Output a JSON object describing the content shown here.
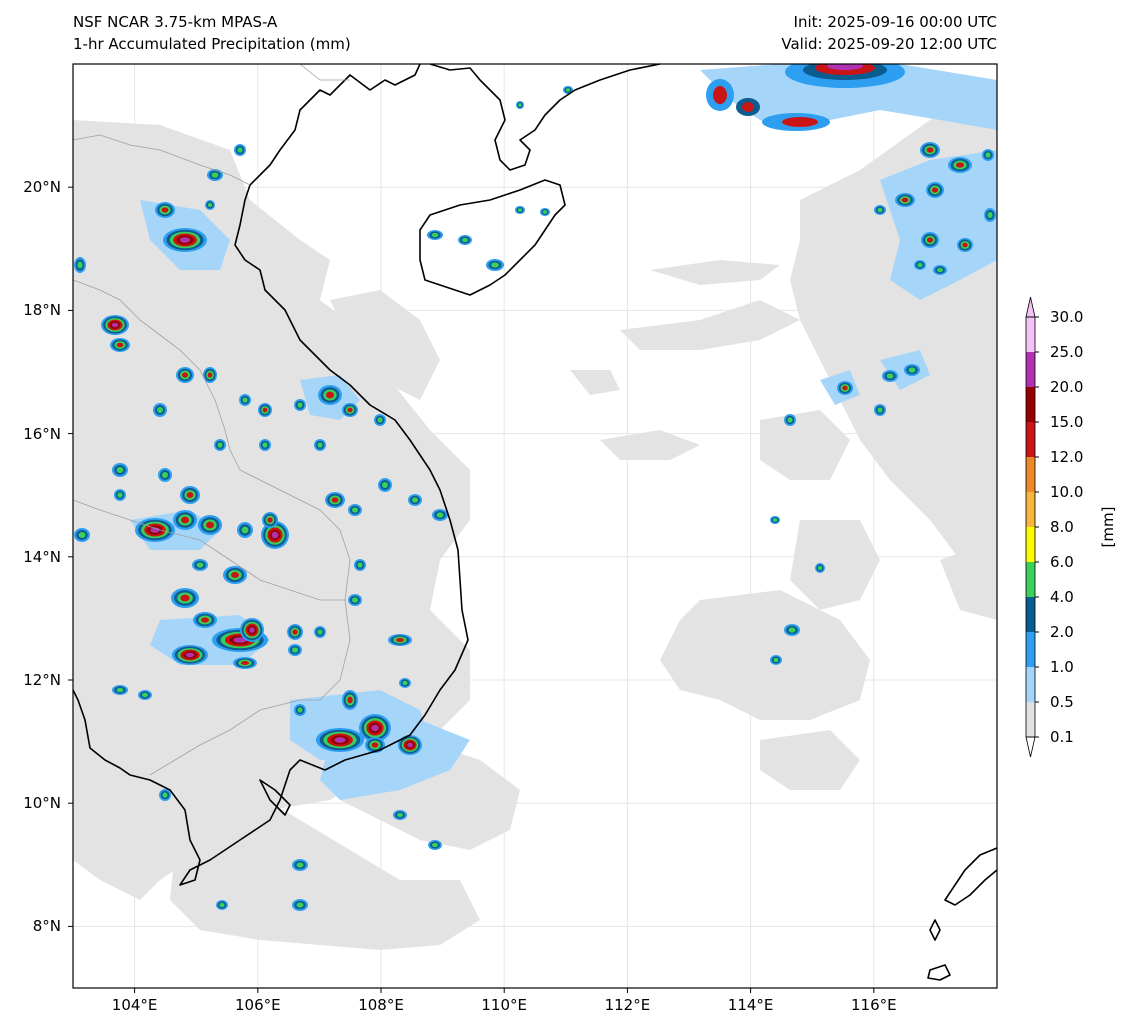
{
  "header": {
    "model": "NSF NCAR 3.75-km MPAS-A",
    "field": "1-hr Accumulated Precipitation (mm)",
    "init": "Init: 2025-09-16 00:00 UTC",
    "valid": "Valid: 2025-09-20 12:00 UTC"
  },
  "map": {
    "extent": {
      "lon": [
        103,
        118
      ],
      "lat": [
        7,
        22
      ]
    },
    "lat_ticks": [
      {
        "value": 8,
        "label": "8°N"
      },
      {
        "value": 10,
        "label": "10°N"
      },
      {
        "value": 12,
        "label": "12°N"
      },
      {
        "value": 14,
        "label": "14°N"
      },
      {
        "value": 16,
        "label": "16°N"
      },
      {
        "value": 18,
        "label": "18°N"
      },
      {
        "value": 20,
        "label": "20°N"
      }
    ],
    "lon_ticks": [
      {
        "value": 104,
        "label": "104°E"
      },
      {
        "value": 106,
        "label": "106°E"
      },
      {
        "value": 108,
        "label": "108°E"
      },
      {
        "value": 110,
        "label": "110°E"
      },
      {
        "value": 112,
        "label": "112°E"
      },
      {
        "value": 114,
        "label": "114°E"
      },
      {
        "value": 116,
        "label": "116°E"
      }
    ],
    "colors": {
      "land_outline": "#000000",
      "border": "#a0a0a0",
      "grid": "#e6e6e6"
    }
  },
  "colorbar": {
    "units": "[mm]",
    "levels": [
      "0.1",
      "0.5",
      "1.0",
      "2.0",
      "4.0",
      "6.0",
      "8.0",
      "10.0",
      "12.0",
      "15.0",
      "20.0",
      "25.0",
      "30.0"
    ],
    "colors": [
      "#e1e1e1",
      "#a6d5fa",
      "#2e9ff0",
      "#0b5c8f",
      "#3bd05a",
      "#fcfc00",
      "#f7b63a",
      "#ec8a28",
      "#c91515",
      "#960000",
      "#b032b0",
      "#f5c2f5"
    ]
  }
}
